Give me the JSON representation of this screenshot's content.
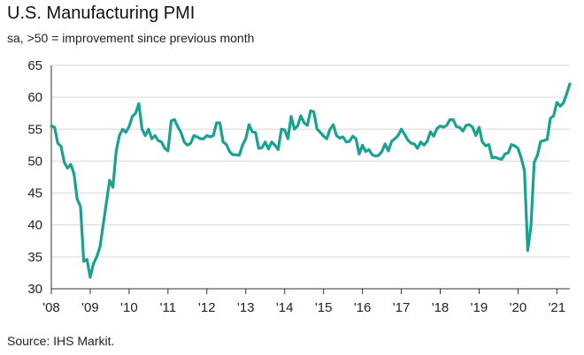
{
  "chart_data": {
    "type": "line",
    "title": "U.S. Manufacturing PMI",
    "subtitle": "sa, >50 = improvement since previous month",
    "source": "Source: IHS Markit.",
    "xlabel": "",
    "ylabel": "",
    "ylim": [
      30,
      65
    ],
    "yticks": [
      30,
      35,
      40,
      45,
      50,
      55,
      60,
      65
    ],
    "xlim": [
      "2008-01",
      "2021-05"
    ],
    "xtick_labels": [
      "'08",
      "'09",
      "'10",
      "'11",
      "'12",
      "'13",
      "'14",
      "'15",
      "'16",
      "'17",
      "'18",
      "'19",
      "'20",
      "'21"
    ],
    "grid": "horizontal",
    "line_color": "#1aa192",
    "series": [
      {
        "x": [
          "2008-01",
          "2008-02",
          "2008-03",
          "2008-04",
          "2008-05",
          "2008-06",
          "2008-07",
          "2008-08",
          "2008-09",
          "2008-10",
          "2008-11",
          "2008-12",
          "2009-01",
          "2009-02",
          "2009-03",
          "2009-04",
          "2009-05",
          "2009-06",
          "2009-07",
          "2009-08",
          "2009-09",
          "2009-10",
          "2009-11",
          "2009-12",
          "2010-01",
          "2010-02",
          "2010-03",
          "2010-04",
          "2010-05",
          "2010-06",
          "2010-07",
          "2010-08",
          "2010-09",
          "2010-10",
          "2010-11",
          "2010-12",
          "2011-01",
          "2011-02",
          "2011-03",
          "2011-04",
          "2011-05",
          "2011-06",
          "2011-07",
          "2011-08",
          "2011-09",
          "2011-10",
          "2011-11",
          "2011-12",
          "2012-01",
          "2012-02",
          "2012-03",
          "2012-04",
          "2012-05",
          "2012-06",
          "2012-07",
          "2012-08",
          "2012-09",
          "2012-10",
          "2012-11",
          "2012-12",
          "2013-01",
          "2013-02",
          "2013-03",
          "2013-04",
          "2013-05",
          "2013-06",
          "2013-07",
          "2013-08",
          "2013-09",
          "2013-10",
          "2013-11",
          "2013-12",
          "2014-01",
          "2014-02",
          "2014-03",
          "2014-04",
          "2014-05",
          "2014-06",
          "2014-07",
          "2014-08",
          "2014-09",
          "2014-10",
          "2014-11",
          "2014-12",
          "2015-01",
          "2015-02",
          "2015-03",
          "2015-04",
          "2015-05",
          "2015-06",
          "2015-07",
          "2015-08",
          "2015-09",
          "2015-10",
          "2015-11",
          "2015-12",
          "2016-01",
          "2016-02",
          "2016-03",
          "2016-04",
          "2016-05",
          "2016-06",
          "2016-07",
          "2016-08",
          "2016-09",
          "2016-10",
          "2016-11",
          "2016-12",
          "2017-01",
          "2017-02",
          "2017-03",
          "2017-04",
          "2017-05",
          "2017-06",
          "2017-07",
          "2017-08",
          "2017-09",
          "2017-10",
          "2017-11",
          "2017-12",
          "2018-01",
          "2018-02",
          "2018-03",
          "2018-04",
          "2018-05",
          "2018-06",
          "2018-07",
          "2018-08",
          "2018-09",
          "2018-10",
          "2018-11",
          "2018-12",
          "2019-01",
          "2019-02",
          "2019-03",
          "2019-04",
          "2019-05",
          "2019-06",
          "2019-07",
          "2019-08",
          "2019-09",
          "2019-10",
          "2019-11",
          "2019-12",
          "2020-01",
          "2020-02",
          "2020-03",
          "2020-04",
          "2020-05",
          "2020-06",
          "2020-07",
          "2020-08",
          "2020-09",
          "2020-10",
          "2020-11",
          "2020-12",
          "2021-01",
          "2021-02",
          "2021-03",
          "2021-04",
          "2021-05"
        ],
        "values": [
          55.5,
          55.3,
          52.8,
          52.3,
          49.8,
          48.9,
          49.5,
          48.0,
          44.0,
          42.9,
          34.3,
          34.6,
          31.8,
          33.9,
          35.0,
          36.5,
          40.0,
          43.5,
          47.0,
          45.9,
          51.5,
          54.0,
          55.0,
          54.5,
          55.4,
          57.0,
          57.5,
          59.0,
          55.0,
          54.0,
          55.0,
          53.5,
          54.0,
          53.2,
          53.0,
          52.0,
          51.6,
          56.3,
          56.5,
          55.4,
          54.5,
          53.0,
          52.5,
          52.8,
          54.0,
          53.8,
          53.5,
          53.5,
          54.0,
          53.8,
          54.0,
          56.0,
          56.0,
          53.0,
          52.6,
          51.5,
          51.0,
          51.0,
          50.9,
          52.5,
          53.5,
          55.7,
          54.6,
          54.5,
          52.0,
          52.1,
          53.0,
          51.9,
          53.0,
          52.5,
          51.8,
          55.0,
          54.9,
          53.5,
          57.0,
          55.0,
          55.5,
          57.1,
          56.0,
          55.6,
          57.9,
          57.7,
          55.0,
          54.5,
          53.9,
          53.5,
          55.0,
          55.7,
          54.0,
          53.6,
          53.8,
          53.0,
          53.1,
          53.9,
          53.5,
          51.1,
          52.5,
          51.5,
          51.8,
          51.0,
          50.8,
          50.9,
          51.5,
          52.7,
          51.6,
          53.1,
          53.5,
          54.0,
          55.0,
          54.2,
          53.3,
          52.8,
          52.7,
          52.0,
          53.0,
          52.5,
          53.1,
          54.6,
          53.9,
          55.1,
          55.5,
          55.3,
          55.6,
          56.5,
          56.5,
          55.4,
          55.3,
          54.7,
          55.6,
          55.7,
          55.3,
          54.0,
          55.3,
          53.0,
          52.4,
          52.6,
          50.5,
          50.6,
          50.4,
          50.3,
          51.1,
          51.3,
          52.6,
          52.4,
          52.0,
          50.5,
          48.5,
          36.0,
          39.8,
          49.8,
          50.9,
          53.1,
          53.2,
          53.4,
          56.7,
          57.1,
          59.2,
          58.6,
          59.1,
          60.5,
          62.1
        ]
      }
    ]
  }
}
